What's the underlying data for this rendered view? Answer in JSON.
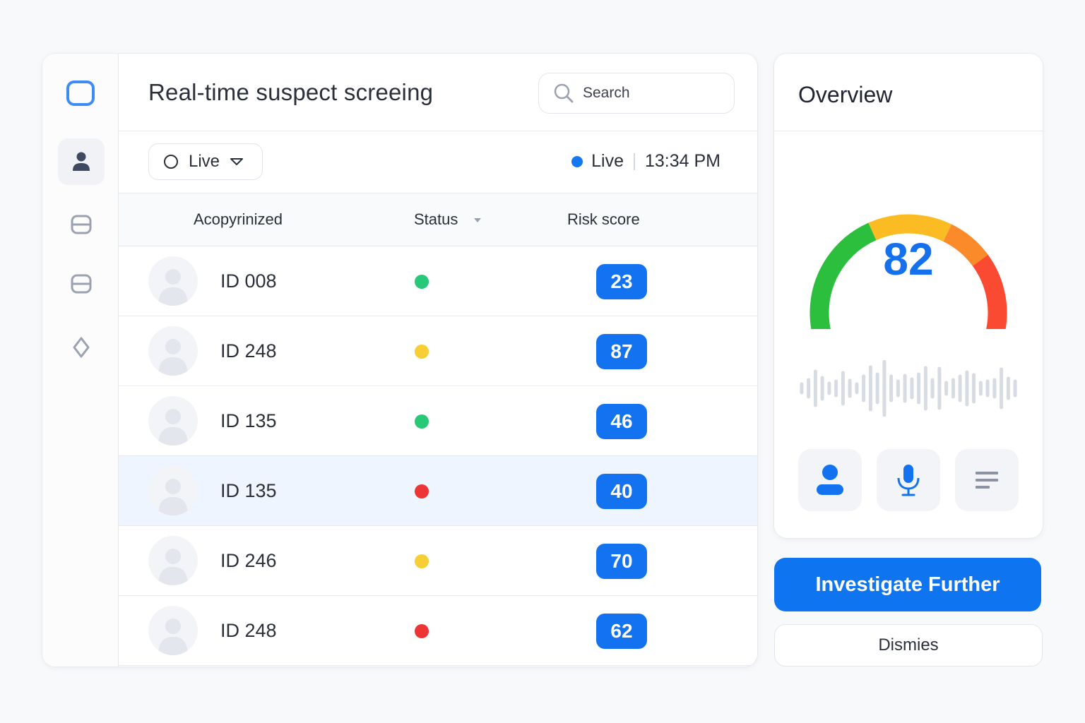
{
  "header": {
    "title": "Real-time suspect screeing",
    "search_placeholder": "Search"
  },
  "toolbar": {
    "filter_label": "Live",
    "live_label": "Live",
    "time": "13:34 PM"
  },
  "table": {
    "columns": [
      "Acopyrinized",
      "Status",
      "Risk score"
    ],
    "rows": [
      {
        "id": "ID 008",
        "status": "green",
        "score": "23"
      },
      {
        "id": "ID 248",
        "status": "yellow",
        "score": "87"
      },
      {
        "id": "ID 135",
        "status": "green",
        "score": "46"
      },
      {
        "id": "ID 135",
        "status": "red",
        "score": "40"
      },
      {
        "id": "ID 246",
        "status": "yellow",
        "score": "70"
      },
      {
        "id": "ID 248",
        "status": "red",
        "score": "62"
      }
    ],
    "selected_row": 3
  },
  "status_colors": {
    "green": "#27c878",
    "yellow": "#f7cf35",
    "red": "#ee3535"
  },
  "overview": {
    "title": "Overview",
    "gauge_value": "82",
    "gauge_colors": [
      "#2cbf3e",
      "#fbbb22",
      "#fb8a2a",
      "#fb4a32"
    ],
    "buttons": [
      {
        "icon": "person-icon"
      },
      {
        "icon": "microphone-icon"
      },
      {
        "icon": "list-icon"
      }
    ]
  },
  "actions": {
    "primary": "Investigate Further",
    "secondary": "Dismies"
  },
  "accent": "#1272ef"
}
